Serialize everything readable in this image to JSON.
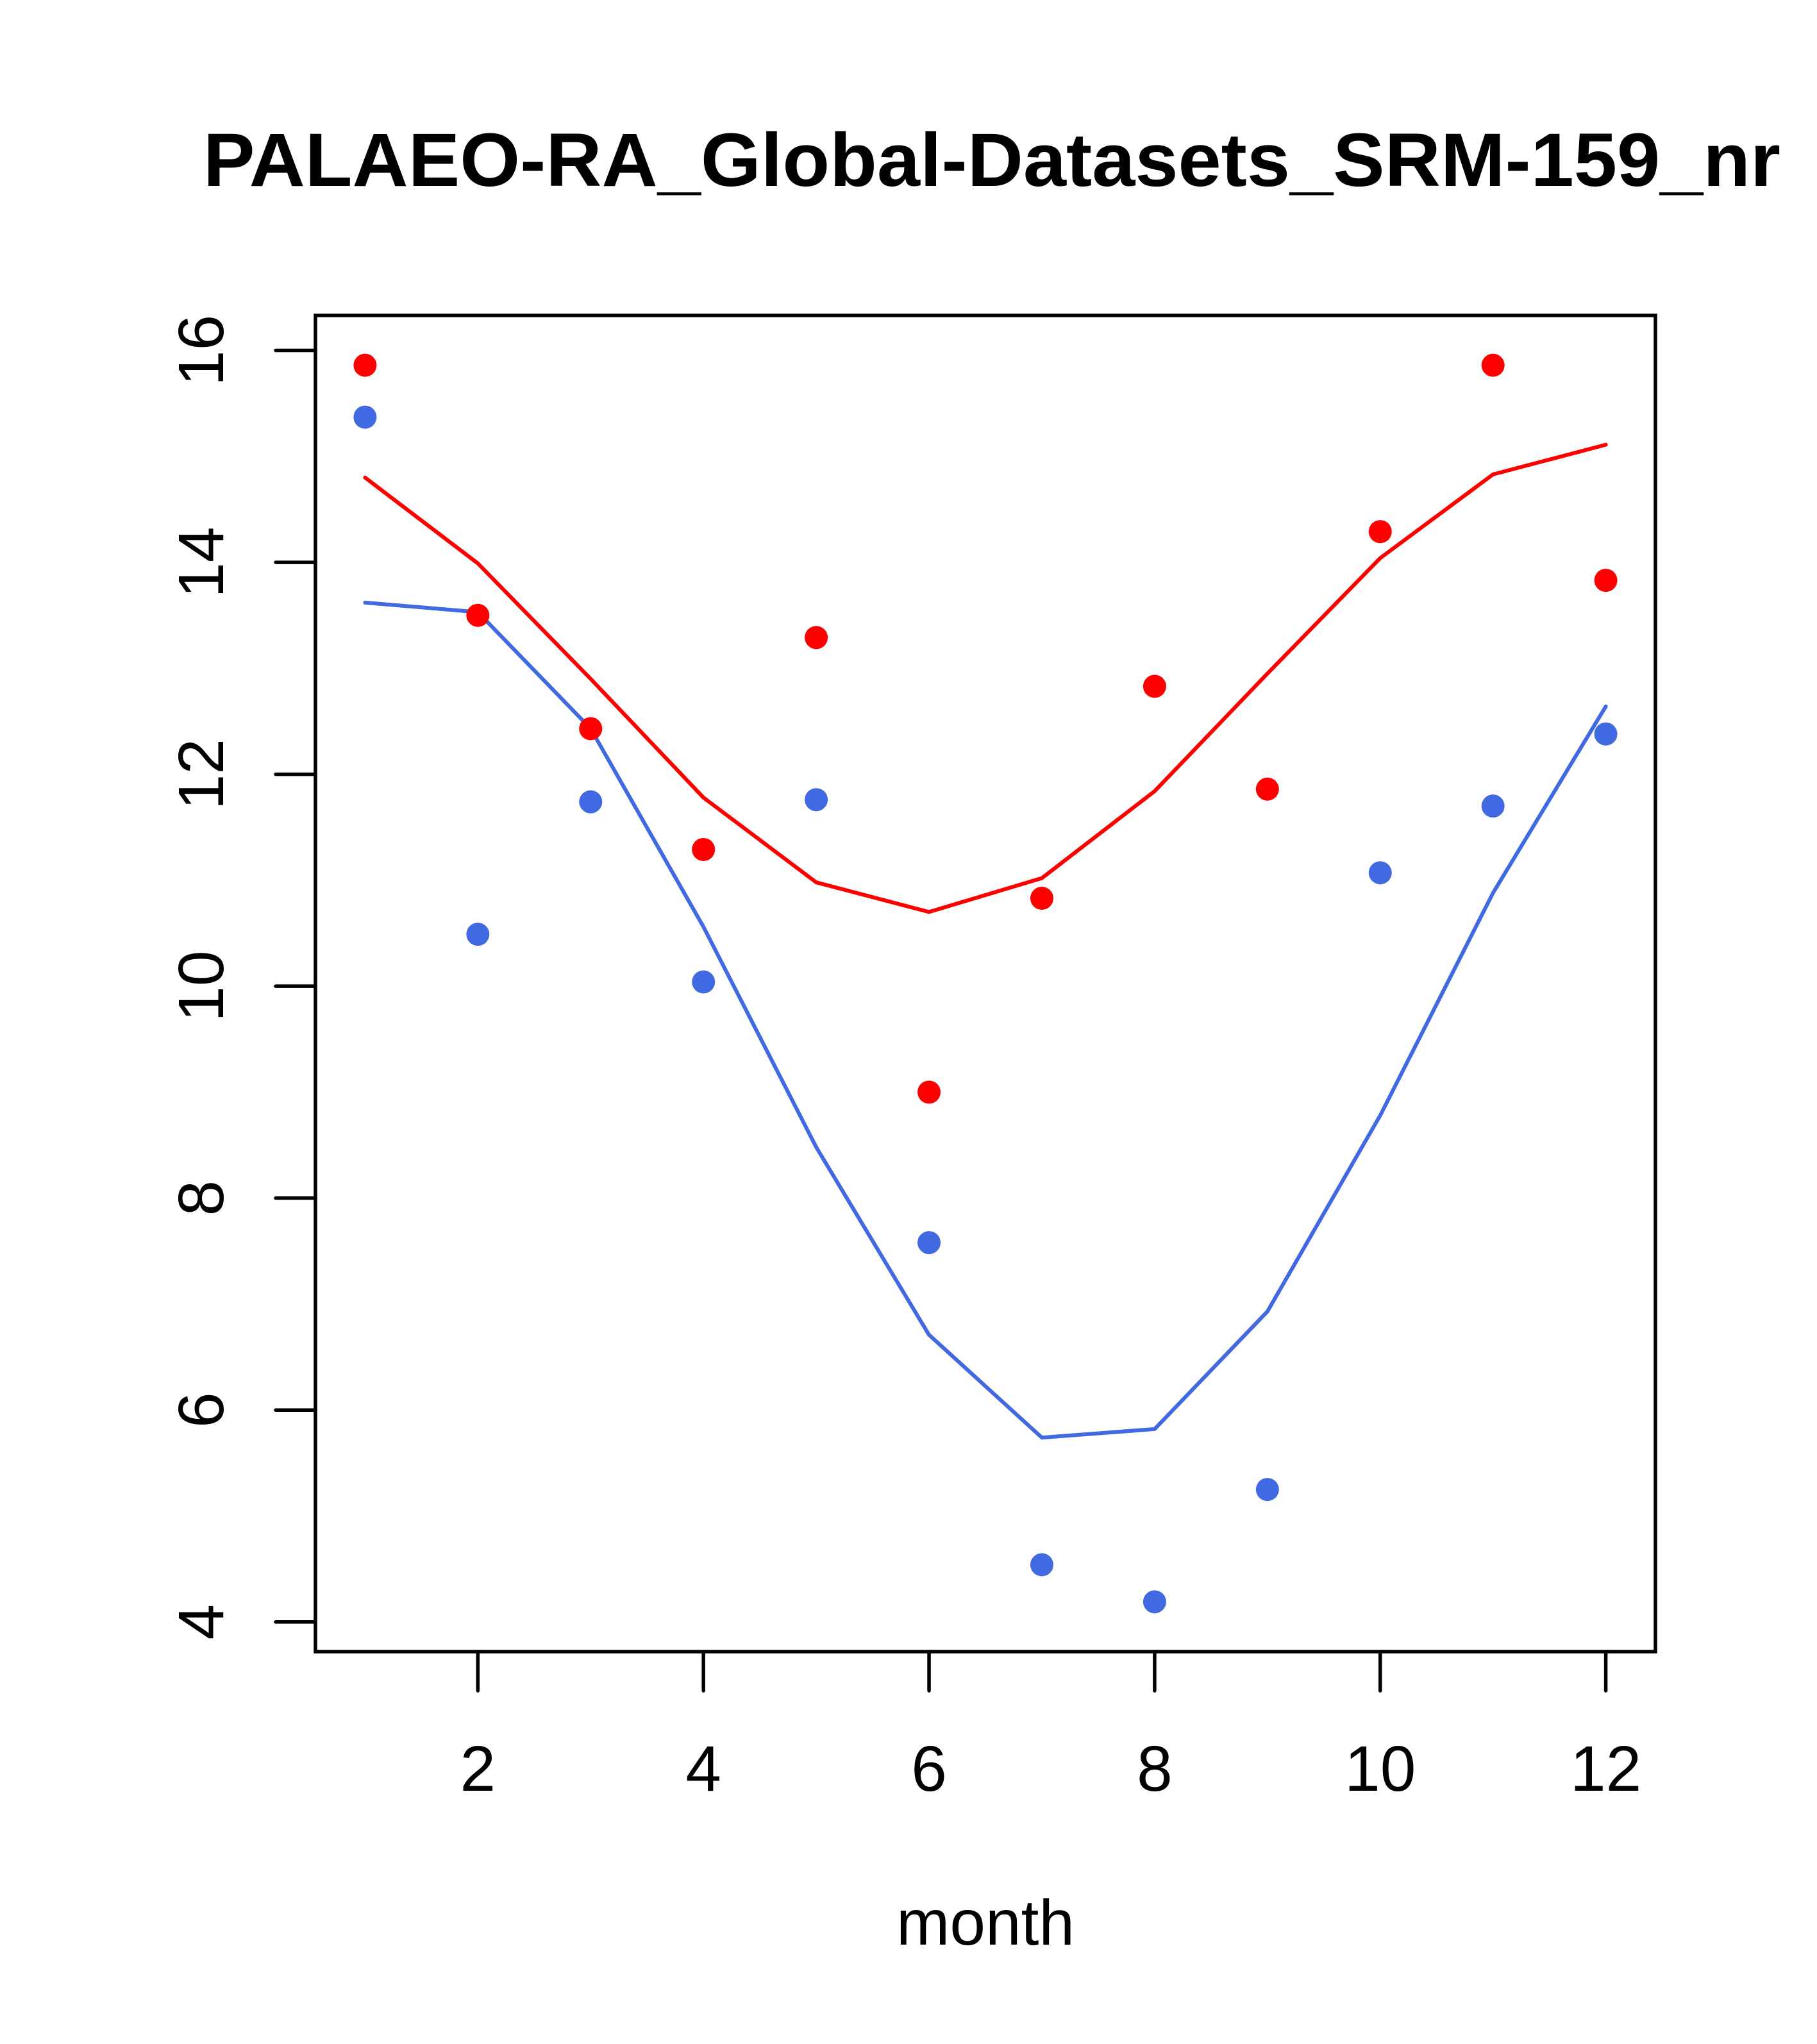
{
  "chart_data": {
    "type": "line",
    "title": "PALAEO-RA_Global-Datasets_SRM-159_nr",
    "xlabel": "month",
    "ylabel": "",
    "xlim": [
      0.56,
      12.44
    ],
    "ylim": [
      3.72,
      16.33
    ],
    "grid": false,
    "legend": null,
    "x": [
      1,
      2,
      3,
      4,
      5,
      6,
      7,
      8,
      9,
      10,
      11,
      12
    ],
    "x_ticks": [
      2,
      4,
      6,
      8,
      10,
      12
    ],
    "x_tick_labels": [
      "2",
      "4",
      "6",
      "8",
      "10",
      "12"
    ],
    "y_ticks": [
      4,
      6,
      8,
      10,
      12,
      14,
      16
    ],
    "y_tick_labels": [
      "4",
      "6",
      "8",
      "10",
      "12",
      "14",
      "16"
    ],
    "series": [
      {
        "name": "red-points",
        "kind": "scatter",
        "color": "#ff0000",
        "values": [
          15.86,
          13.5,
          12.43,
          11.29,
          13.29,
          9.0,
          10.83,
          12.83,
          11.86,
          14.29,
          15.86,
          13.83
        ]
      },
      {
        "name": "blue-points",
        "kind": "scatter",
        "color": "#4169e1",
        "values": [
          15.37,
          10.49,
          11.74,
          10.04,
          11.76,
          7.58,
          4.54,
          4.19,
          5.25,
          11.07,
          11.7,
          12.38
        ]
      },
      {
        "name": "red-line",
        "kind": "line",
        "color": "#ff0000",
        "values": [
          14.8,
          13.99,
          12.9,
          11.78,
          10.98,
          10.7,
          11.02,
          11.84,
          12.95,
          14.04,
          14.83,
          15.11
        ]
      },
      {
        "name": "blue-line",
        "kind": "line",
        "color": "#4169e1",
        "values": [
          13.62,
          13.53,
          12.43,
          10.56,
          8.48,
          6.71,
          5.74,
          5.82,
          6.93,
          8.78,
          10.88,
          12.64
        ]
      }
    ]
  }
}
